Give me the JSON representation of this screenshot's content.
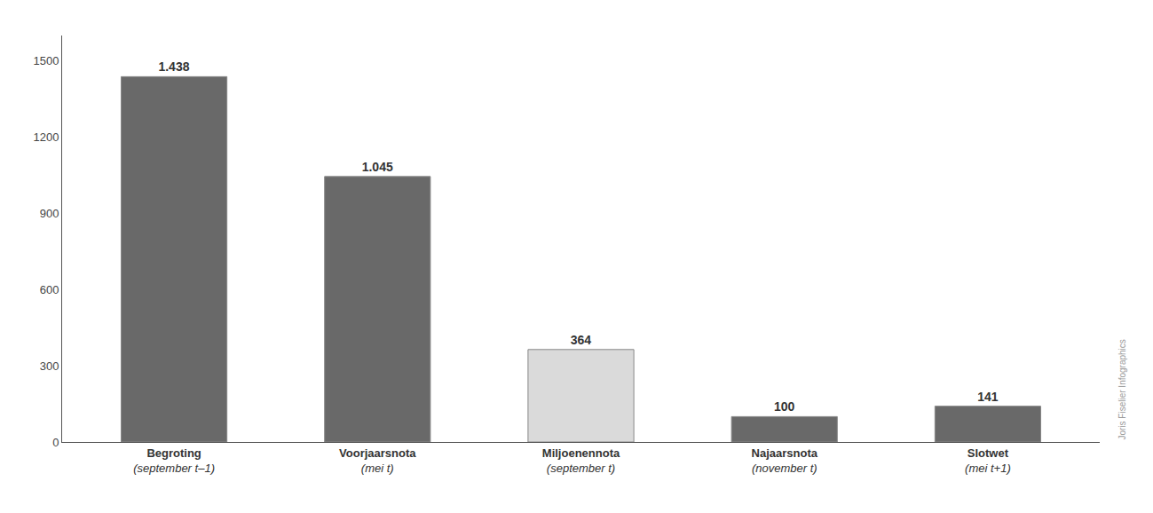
{
  "chart_data": {
    "type": "bar",
    "categories": [
      "Begroting\n(september t–1)",
      "Voorjaarsnota\n(mei t)",
      "Miljoenennota\n(september t)",
      "Najaarsnota\n(november t)",
      "Slotwet\n(mei t+1)"
    ],
    "values": [
      1438,
      1045,
      364,
      100,
      141
    ],
    "value_labels": [
      "1.438",
      "1.045",
      "364",
      "100",
      "141"
    ],
    "colors": [
      "#696969",
      "#696969",
      "#dadada",
      "#696969",
      "#696969"
    ],
    "ylim": [
      0,
      1600
    ],
    "yticks": [
      0,
      300,
      600,
      900,
      1200,
      1500
    ],
    "grid": false,
    "data_labels": true,
    "annotations": [
      "Joris Fiselier Infographics"
    ]
  }
}
